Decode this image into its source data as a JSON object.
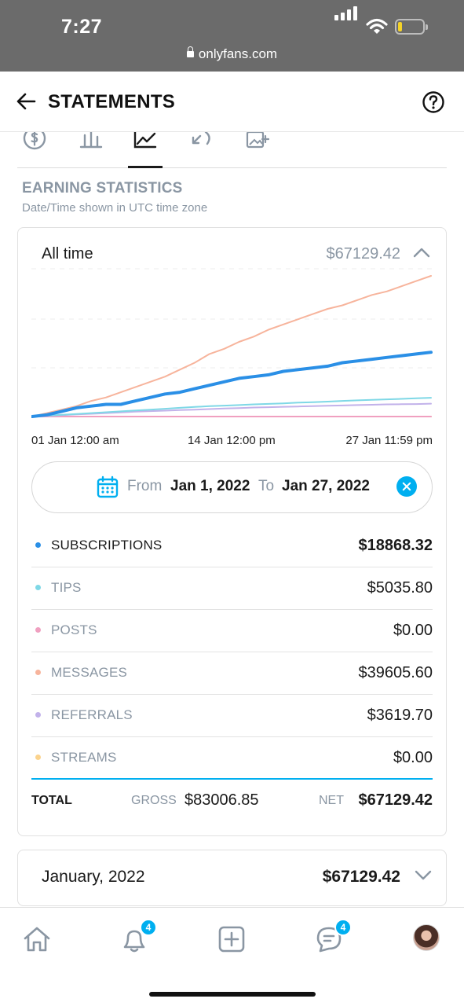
{
  "status_bar": {
    "time": "7:27",
    "url": "onlyfans.com"
  },
  "header": {
    "title": "STATEMENTS"
  },
  "section": {
    "title": "EARNING STATISTICS",
    "subtitle": "Date/Time shown in UTC time zone"
  },
  "summary": {
    "period": "All time",
    "total": "$67129.42"
  },
  "chart_data": {
    "type": "line",
    "x_ticks": [
      "01 Jan 12:00 am",
      "14 Jan 12:00 pm",
      "27 Jan 11:59 pm"
    ],
    "grid": "horizontal dashed",
    "series": [
      {
        "name": "MESSAGES",
        "color": "#f7b49c",
        "values": [
          0,
          2,
          4,
          6,
          9,
          11,
          14,
          17,
          20,
          23,
          27,
          31,
          36,
          39,
          43,
          46,
          50,
          53,
          56,
          59,
          62,
          64,
          67,
          70,
          72,
          75,
          78,
          81
        ]
      },
      {
        "name": "SUBSCRIPTIONS",
        "color": "#2a8fe6",
        "values": [
          0,
          1,
          3,
          5,
          6,
          7,
          7,
          9,
          11,
          13,
          14,
          16,
          18,
          20,
          22,
          23,
          24,
          26,
          27,
          28,
          29,
          31,
          32,
          33,
          34,
          35,
          36,
          37
        ]
      },
      {
        "name": "TIPS",
        "color": "#7fd8e6",
        "values": [
          0,
          0.5,
          1,
          1.5,
          2,
          2.5,
          3,
          3.5,
          4,
          4.5,
          5,
          5.5,
          6,
          6.3,
          6.6,
          7,
          7.3,
          7.6,
          8,
          8.3,
          8.6,
          9,
          9.3,
          9.6,
          9.9,
          10.2,
          10.5,
          10.8
        ]
      },
      {
        "name": "REFERRALS",
        "color": "#c2b2ea",
        "values": [
          0,
          0.4,
          0.8,
          1.2,
          1.6,
          2,
          2.4,
          2.8,
          3.1,
          3.4,
          3.7,
          4,
          4.3,
          4.6,
          4.9,
          5.2,
          5.4,
          5.6,
          5.8,
          6,
          6.2,
          6.4,
          6.6,
          6.8,
          7,
          7.1,
          7.2,
          7.4
        ]
      },
      {
        "name": "POSTS",
        "color": "#f0a0c0",
        "values": [
          0,
          0,
          0,
          0,
          0,
          0,
          0,
          0,
          0,
          0,
          0,
          0,
          0,
          0,
          0,
          0,
          0,
          0,
          0,
          0,
          0,
          0,
          0,
          0,
          0,
          0,
          0,
          0
        ]
      },
      {
        "name": "STREAMS",
        "color": "#fbd38d",
        "values": [
          0,
          0,
          0,
          0,
          0,
          0,
          0,
          0,
          0,
          0,
          0,
          0,
          0,
          0,
          0,
          0,
          0,
          0,
          0,
          0,
          0,
          0,
          0,
          0,
          0,
          0,
          0,
          0
        ]
      }
    ]
  },
  "date_range": {
    "from_label": "From",
    "from": "Jan 1, 2022",
    "to_label": "To",
    "to": "Jan 27, 2022"
  },
  "breakdown": [
    {
      "label": "SUBSCRIPTIONS",
      "amount": "$18868.32",
      "color": "#2a8fe6"
    },
    {
      "label": "TIPS",
      "amount": "$5035.80",
      "color": "#7fd8e6"
    },
    {
      "label": "POSTS",
      "amount": "$0.00",
      "color": "#f0a0c0"
    },
    {
      "label": "MESSAGES",
      "amount": "$39605.60",
      "color": "#f7b49c"
    },
    {
      "label": "REFERRALS",
      "amount": "$3619.70",
      "color": "#c2b2ea"
    },
    {
      "label": "STREAMS",
      "amount": "$0.00",
      "color": "#fbd38d"
    }
  ],
  "totals": {
    "label": "TOTAL",
    "gross_label": "GROSS",
    "gross": "$83006.85",
    "net_label": "NET",
    "net": "$67129.42"
  },
  "month": {
    "label": "January, 2022",
    "amount": "$67129.42"
  },
  "nav": {
    "notifications_badge": "4",
    "messages_badge": "4"
  },
  "colors": {
    "accent": "#00aff0",
    "muted": "#8a96a3"
  }
}
